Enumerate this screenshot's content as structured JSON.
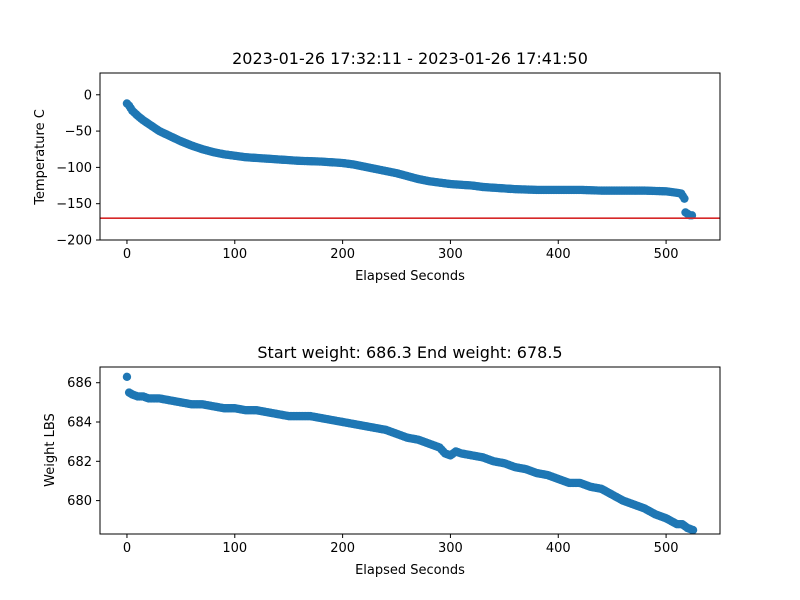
{
  "chart_data": [
    {
      "type": "scatter",
      "title": "2023-01-26 17:32:11 - 2023-01-26 17:41:50",
      "xlabel": "Elapsed Seconds",
      "ylabel": "Temperature C",
      "xlim": [
        -25,
        550
      ],
      "ylim": [
        -200,
        30
      ],
      "xticks": [
        0,
        100,
        200,
        300,
        400,
        500
      ],
      "yticks": [
        -200,
        -150,
        -100,
        -50,
        0
      ],
      "xtick_labels": [
        "0",
        "100",
        "200",
        "300",
        "400",
        "500"
      ],
      "ytick_labels": [
        "−200",
        "−150",
        "−100",
        "−50",
        "0"
      ],
      "color": "#1f77b4",
      "hline": {
        "y": -170,
        "color": "#d62728"
      },
      "grid": false,
      "points": [
        [
          0,
          -12
        ],
        [
          2,
          -15
        ],
        [
          5,
          -22
        ],
        [
          10,
          -29
        ],
        [
          15,
          -35
        ],
        [
          20,
          -40
        ],
        [
          25,
          -45
        ],
        [
          30,
          -50
        ],
        [
          40,
          -57
        ],
        [
          50,
          -64
        ],
        [
          60,
          -70
        ],
        [
          70,
          -75
        ],
        [
          80,
          -79
        ],
        [
          90,
          -82
        ],
        [
          100,
          -84
        ],
        [
          110,
          -86
        ],
        [
          120,
          -87
        ],
        [
          140,
          -89
        ],
        [
          160,
          -91
        ],
        [
          180,
          -92
        ],
        [
          200,
          -94
        ],
        [
          210,
          -96
        ],
        [
          220,
          -99
        ],
        [
          230,
          -102
        ],
        [
          240,
          -105
        ],
        [
          250,
          -108
        ],
        [
          260,
          -112
        ],
        [
          270,
          -116
        ],
        [
          280,
          -119
        ],
        [
          290,
          -121
        ],
        [
          300,
          -123
        ],
        [
          310,
          -124
        ],
        [
          320,
          -125
        ],
        [
          330,
          -127
        ],
        [
          340,
          -128
        ],
        [
          350,
          -129
        ],
        [
          360,
          -130
        ],
        [
          380,
          -131
        ],
        [
          400,
          -131
        ],
        [
          420,
          -131
        ],
        [
          440,
          -132
        ],
        [
          460,
          -132
        ],
        [
          480,
          -132
        ],
        [
          500,
          -133
        ],
        [
          505,
          -134
        ],
        [
          510,
          -135
        ],
        [
          514,
          -136
        ],
        [
          517,
          -143
        ],
        [
          518,
          -162
        ],
        [
          520,
          -164
        ],
        [
          522,
          -166
        ],
        [
          524,
          -166
        ]
      ]
    },
    {
      "type": "scatter",
      "title": "Start weight: 686.3 End weight: 678.5",
      "xlabel": "Elapsed Seconds",
      "ylabel": "Weight LBS",
      "xlim": [
        -25,
        550
      ],
      "ylim": [
        678.3,
        686.8
      ],
      "xticks": [
        0,
        100,
        200,
        300,
        400,
        500
      ],
      "yticks": [
        680,
        682,
        684,
        686
      ],
      "xtick_labels": [
        "0",
        "100",
        "200",
        "300",
        "400",
        "500"
      ],
      "ytick_labels": [
        "680",
        "682",
        "684",
        "686"
      ],
      "color": "#1f77b4",
      "grid": false,
      "points": [
        [
          0,
          686.3
        ],
        [
          2,
          685.5
        ],
        [
          5,
          685.4
        ],
        [
          10,
          685.3
        ],
        [
          15,
          685.3
        ],
        [
          20,
          685.2
        ],
        [
          30,
          685.2
        ],
        [
          40,
          685.1
        ],
        [
          50,
          685.0
        ],
        [
          60,
          684.9
        ],
        [
          70,
          684.9
        ],
        [
          80,
          684.8
        ],
        [
          90,
          684.7
        ],
        [
          100,
          684.7
        ],
        [
          110,
          684.6
        ],
        [
          120,
          684.6
        ],
        [
          130,
          684.5
        ],
        [
          140,
          684.4
        ],
        [
          150,
          684.3
        ],
        [
          160,
          684.3
        ],
        [
          170,
          684.3
        ],
        [
          180,
          684.2
        ],
        [
          190,
          684.1
        ],
        [
          200,
          684.0
        ],
        [
          210,
          683.9
        ],
        [
          220,
          683.8
        ],
        [
          230,
          683.7
        ],
        [
          240,
          683.6
        ],
        [
          250,
          683.4
        ],
        [
          260,
          683.2
        ],
        [
          270,
          683.1
        ],
        [
          280,
          682.9
        ],
        [
          290,
          682.7
        ],
        [
          295,
          682.4
        ],
        [
          300,
          682.3
        ],
        [
          305,
          682.5
        ],
        [
          310,
          682.4
        ],
        [
          320,
          682.3
        ],
        [
          330,
          682.2
        ],
        [
          340,
          682.0
        ],
        [
          350,
          681.9
        ],
        [
          360,
          681.7
        ],
        [
          370,
          681.6
        ],
        [
          380,
          681.4
        ],
        [
          390,
          681.3
        ],
        [
          400,
          681.1
        ],
        [
          410,
          680.9
        ],
        [
          420,
          680.9
        ],
        [
          430,
          680.7
        ],
        [
          440,
          680.6
        ],
        [
          450,
          680.3
        ],
        [
          460,
          680.0
        ],
        [
          470,
          679.8
        ],
        [
          480,
          679.6
        ],
        [
          490,
          679.3
        ],
        [
          500,
          679.1
        ],
        [
          510,
          678.8
        ],
        [
          515,
          678.8
        ],
        [
          520,
          678.6
        ],
        [
          525,
          678.5
        ]
      ]
    }
  ]
}
